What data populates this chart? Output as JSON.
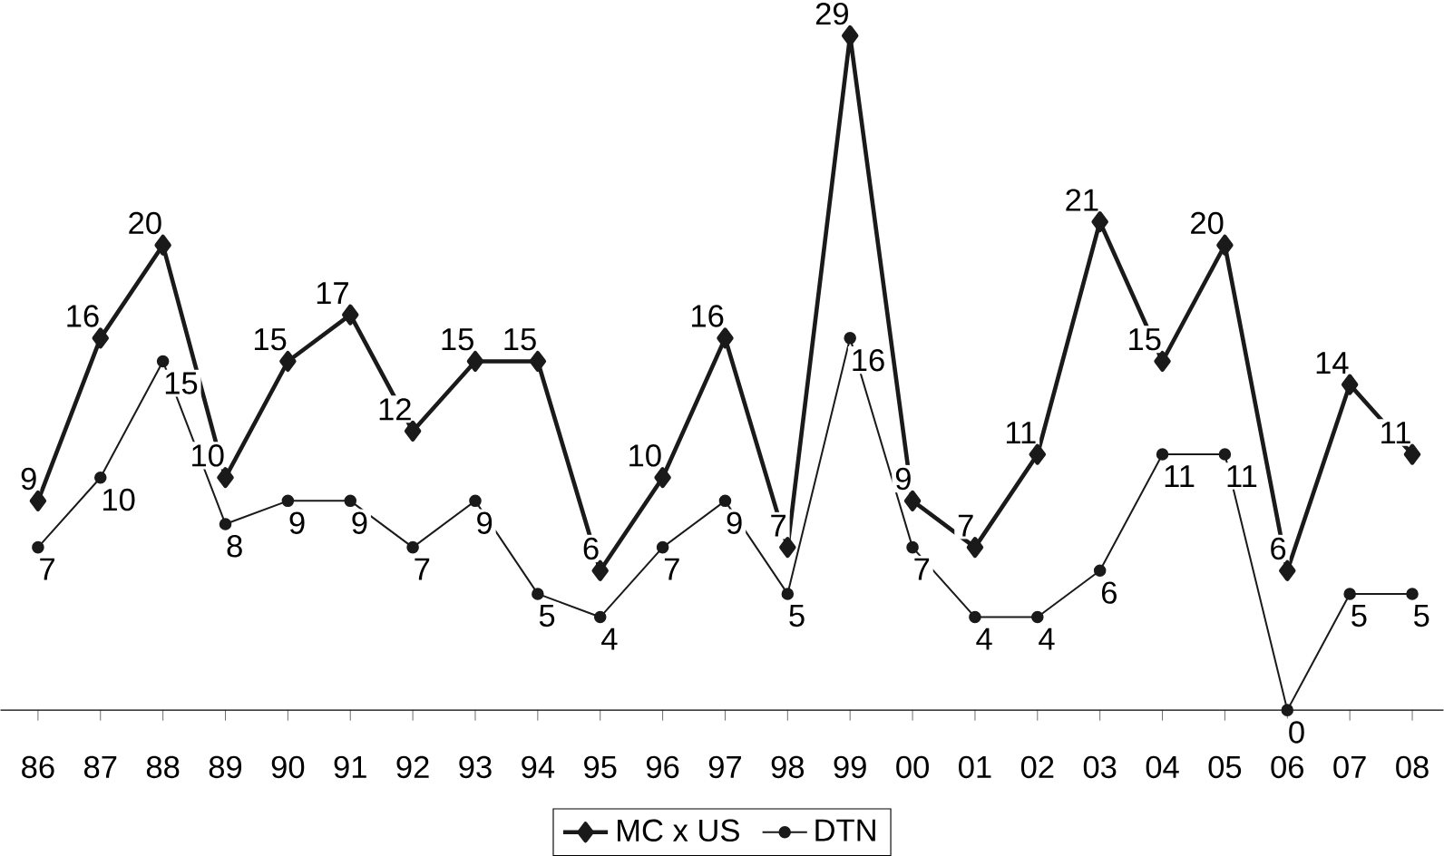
{
  "chart_data": {
    "type": "line",
    "categories": [
      "86",
      "87",
      "88",
      "89",
      "90",
      "91",
      "92",
      "93",
      "94",
      "95",
      "96",
      "97",
      "98",
      "99",
      "00",
      "01",
      "02",
      "03",
      "04",
      "05",
      "06",
      "07",
      "08"
    ],
    "series": [
      {
        "name": "MC x US",
        "color": "#1a1a1a",
        "marker": "diamond",
        "values": [
          9,
          16,
          20,
          10,
          15,
          17,
          12,
          15,
          15,
          6,
          10,
          16,
          7,
          29,
          9,
          7,
          11,
          21,
          15,
          20,
          6,
          14,
          11
        ]
      },
      {
        "name": "DTN",
        "color": "#1a1a1a",
        "marker": "circle",
        "values": [
          7,
          10,
          15,
          8,
          9,
          9,
          7,
          9,
          5,
          4,
          7,
          9,
          5,
          16,
          7,
          4,
          4,
          6,
          11,
          11,
          0,
          5,
          5
        ]
      }
    ],
    "tick_labels": "x",
    "data_labels": true,
    "grid": false,
    "legend": "bottom",
    "line_style": "solid"
  }
}
